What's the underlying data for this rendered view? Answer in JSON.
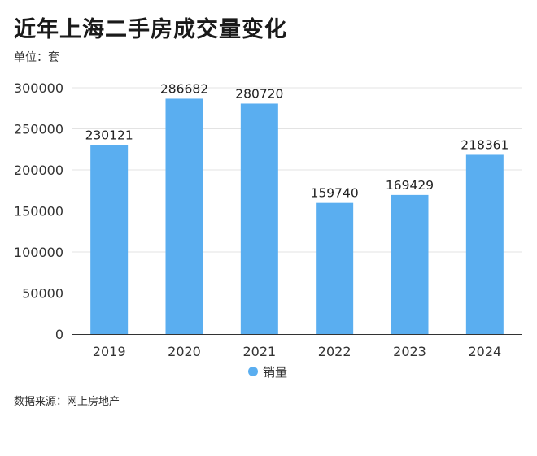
{
  "title": "近年上海二手房成交量变化",
  "unit_label": "单位：套",
  "source": "数据来源：网上房地产",
  "chart_data": {
    "type": "bar",
    "categories": [
      "2019",
      "2020",
      "2021",
      "2022",
      "2023",
      "2024"
    ],
    "series": [
      {
        "name": "销量",
        "values": [
          230121,
          286682,
          280720,
          159740,
          169429,
          218361
        ],
        "color": "#5AAEF0"
      }
    ],
    "y_ticks": [
      0,
      50000,
      100000,
      150000,
      200000,
      250000,
      300000
    ],
    "ylim": [
      0,
      300000
    ],
    "grid": true,
    "legend_position": "bottom-center"
  }
}
